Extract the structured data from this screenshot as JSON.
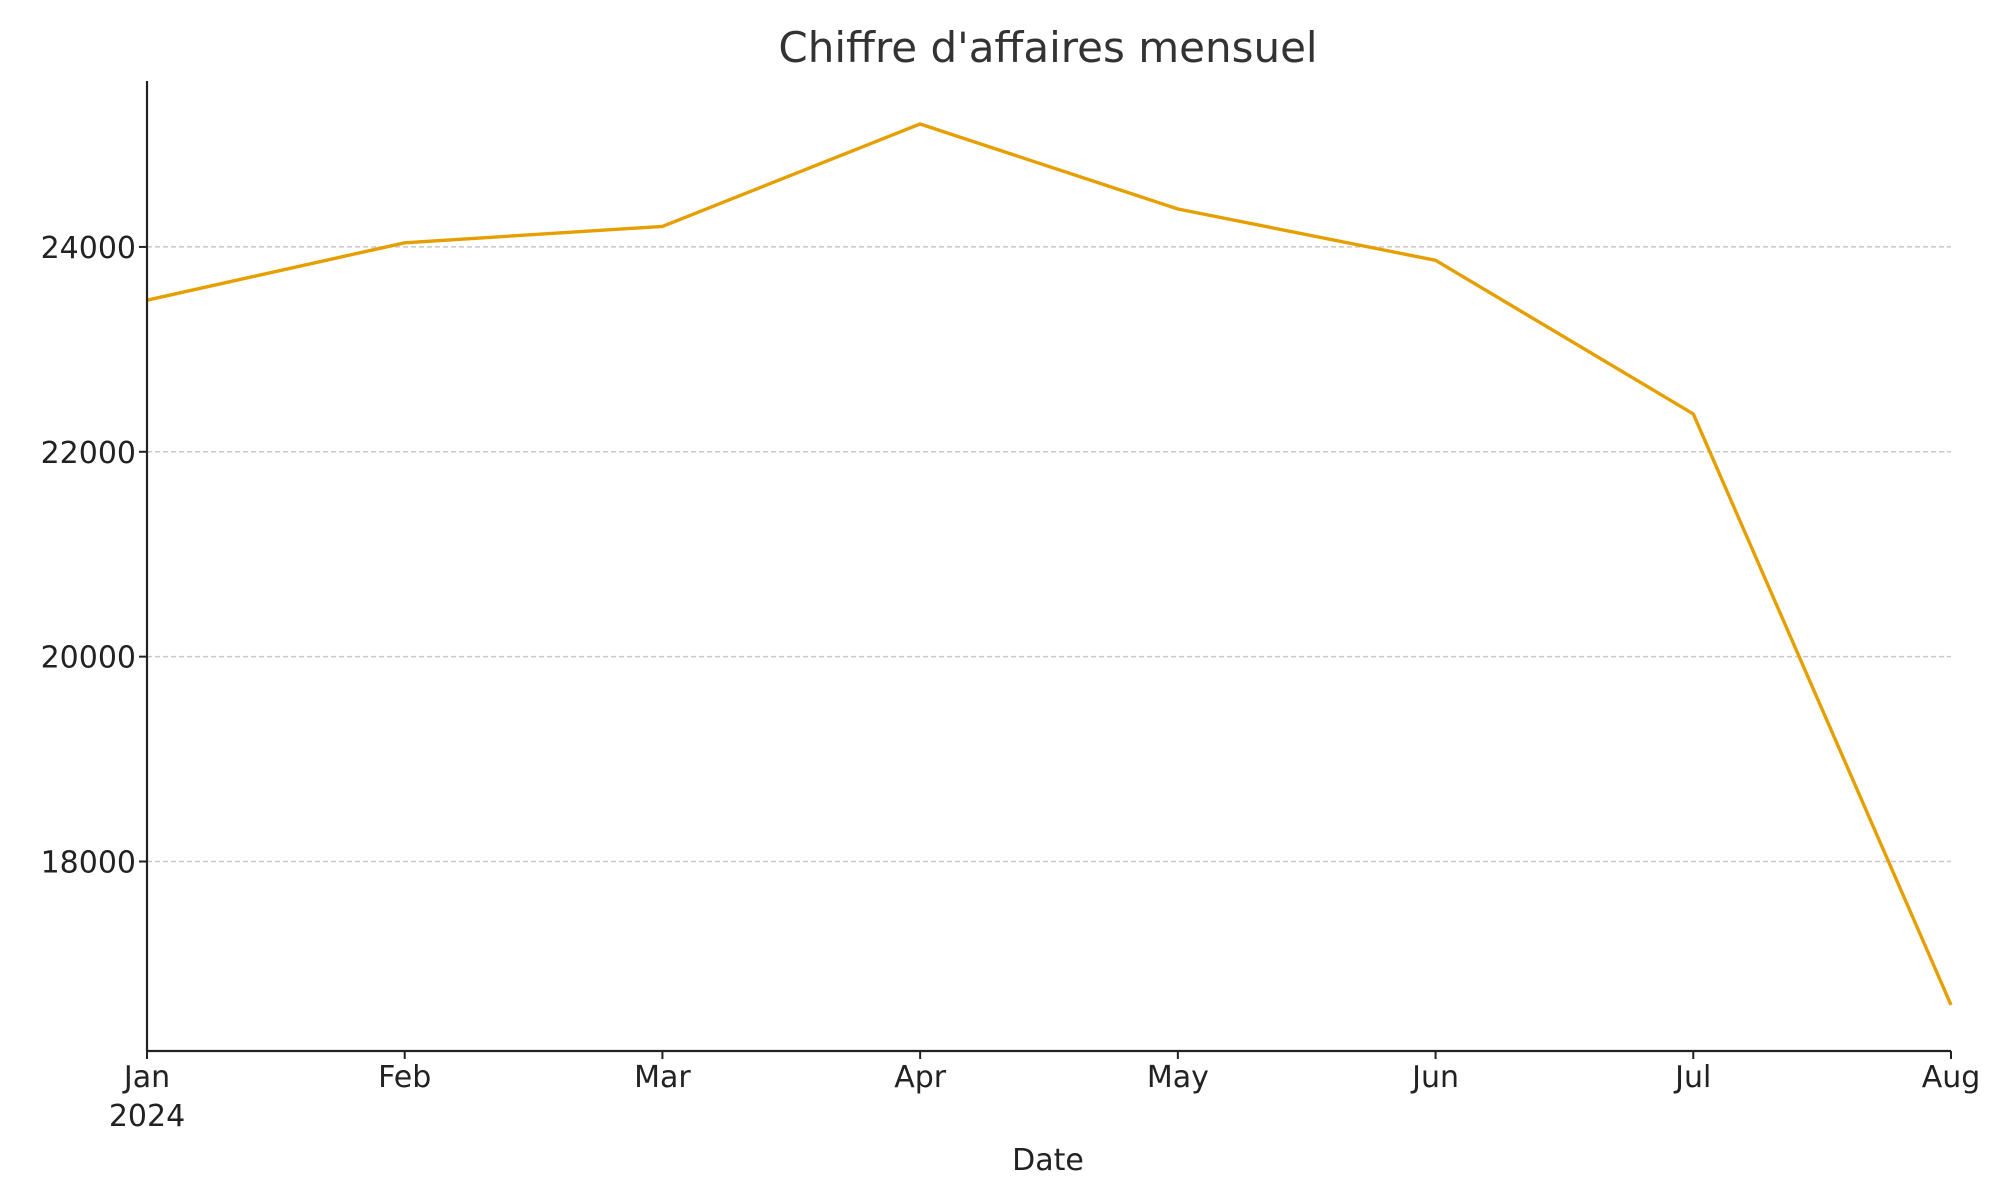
{
  "chart_data": {
    "type": "line",
    "title": "Chiffre d'affaires mensuel",
    "xlabel": "Date",
    "ylabel": "",
    "x": [
      "2024-01",
      "2024-02",
      "2024-03",
      "2024-04",
      "2024-05",
      "2024-06",
      "2024-07",
      "2024-08"
    ],
    "x_tick_labels": [
      "Jan",
      "Feb",
      "Mar",
      "Apr",
      "May",
      "Jun",
      "Jul",
      "Aug"
    ],
    "x_year_label": "2024",
    "series": [
      {
        "values": [
          23480,
          24040,
          24200,
          25200,
          24370,
          23870,
          22370,
          16600
        ]
      }
    ],
    "yticks": [
      18000,
      20000,
      22000,
      24000
    ],
    "ylim": [
      16150,
      25620
    ],
    "grid": "horizontal, dashed",
    "line_color": "#E69F00"
  }
}
